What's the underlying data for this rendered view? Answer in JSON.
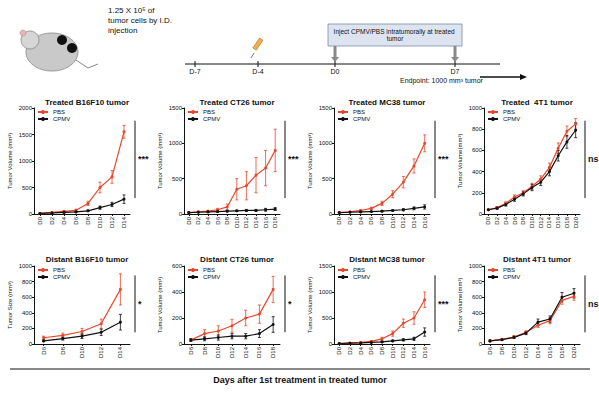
{
  "protocol": {
    "injection_text": [
      "1.25 X 10⁵ of",
      "tumor cells by I.D.",
      "injection"
    ],
    "treatment_text": "Inject CPMV/PBS intratumorally at treated tumor",
    "timepoints": [
      "D-7",
      "D-4",
      "D0",
      "D7"
    ],
    "endpoint_text": "Endpoint: 1000 mm³ tumor"
  },
  "x_axis_title": "Days after 1st treatment in treated tumor",
  "chart_data": [
    {
      "type": "line",
      "title": "Treated B16F10 tumor",
      "y_label": "Tumor Volume (mm³)",
      "significance": "***",
      "categories": [
        "D0",
        "D2",
        "D4",
        "D6",
        "D8",
        "D10",
        "D12",
        "D14"
      ],
      "ylim": [
        0,
        2000
      ],
      "yticks": [
        0,
        500,
        1000,
        1500,
        2000
      ],
      "grid": false,
      "legend": "upper left",
      "series": [
        {
          "name": "PBS",
          "color": "#e8472b",
          "marker": "circle",
          "values": [
            10,
            30,
            50,
            70,
            200,
            500,
            700,
            1550
          ],
          "errors": [
            5,
            10,
            15,
            20,
            40,
            100,
            120,
            120
          ]
        },
        {
          "name": "CPMV",
          "color": "#111111",
          "marker": "circle",
          "values": [
            10,
            20,
            30,
            40,
            60,
            120,
            180,
            280
          ],
          "errors": [
            5,
            5,
            10,
            10,
            15,
            30,
            40,
            80
          ]
        }
      ]
    },
    {
      "type": "line",
      "title": "Treated CT26 tumor",
      "y_label": "Tumor Volume (mm³)",
      "significance": "***",
      "categories": [
        "D0",
        "D2",
        "D4",
        "D6",
        "D8",
        "D10",
        "D12",
        "D14",
        "D16",
        "D18"
      ],
      "ylim": [
        0,
        1500
      ],
      "yticks": [
        0,
        500,
        1000,
        1500
      ],
      "grid": false,
      "legend": "upper left",
      "series": [
        {
          "name": "PBS",
          "color": "#e8472b",
          "marker": "circle",
          "values": [
            20,
            30,
            40,
            60,
            100,
            350,
            400,
            550,
            650,
            900
          ],
          "errors": [
            5,
            10,
            10,
            20,
            40,
            150,
            200,
            250,
            250,
            300
          ]
        },
        {
          "name": "CPMV",
          "color": "#111111",
          "marker": "circle",
          "values": [
            20,
            25,
            30,
            35,
            40,
            45,
            50,
            50,
            60,
            70
          ],
          "errors": [
            5,
            5,
            5,
            10,
            10,
            10,
            15,
            15,
            20,
            20
          ]
        }
      ]
    },
    {
      "type": "line",
      "title": "Treated MC38 tumor",
      "y_label": "Tumor Volume (mm³)",
      "significance": "***",
      "categories": [
        "D0",
        "D2",
        "D4",
        "D6",
        "D8",
        "D10",
        "D12",
        "D14",
        "D16"
      ],
      "ylim": [
        0,
        1500
      ],
      "yticks": [
        0,
        500,
        1000,
        1500
      ],
      "grid": false,
      "legend": "upper left",
      "series": [
        {
          "name": "PBS",
          "color": "#e8472b",
          "marker": "circle",
          "values": [
            20,
            30,
            50,
            80,
            150,
            280,
            450,
            680,
            1000
          ],
          "errors": [
            5,
            5,
            10,
            15,
            30,
            50,
            80,
            100,
            120
          ]
        },
        {
          "name": "CPMV",
          "color": "#111111",
          "marker": "circle",
          "values": [
            20,
            25,
            30,
            35,
            40,
            50,
            60,
            80,
            100
          ],
          "errors": [
            5,
            5,
            5,
            5,
            10,
            10,
            15,
            20,
            30
          ]
        }
      ]
    },
    {
      "type": "line",
      "title": "Treated  4T1 tumor",
      "y_label": "Tumor Volume(mm³)",
      "significance": "ns",
      "categories": [
        "D0",
        "D2",
        "D4",
        "D6",
        "D8",
        "D10",
        "D12",
        "D14",
        "D16",
        "D18",
        "D20"
      ],
      "ylim": [
        0,
        1000
      ],
      "yticks": [
        0,
        200,
        400,
        600,
        800,
        1000
      ],
      "grid": false,
      "legend": "upper left",
      "series": [
        {
          "name": "PBS",
          "color": "#e8472b",
          "marker": "circle",
          "values": [
            40,
            60,
            100,
            160,
            200,
            260,
            330,
            440,
            620,
            780,
            850
          ],
          "errors": [
            5,
            10,
            15,
            20,
            20,
            30,
            30,
            40,
            50,
            50,
            50
          ]
        },
        {
          "name": "CPMV",
          "color": "#111111",
          "marker": "circle",
          "values": [
            40,
            55,
            90,
            140,
            190,
            250,
            300,
            400,
            550,
            680,
            790
          ],
          "errors": [
            5,
            10,
            15,
            20,
            20,
            30,
            30,
            40,
            50,
            60,
            70
          ]
        }
      ]
    },
    {
      "type": "line",
      "title": "Distant B16F10 tumor",
      "y_label": "Tumor Size (mm³)",
      "significance": "*",
      "categories": [
        "D6",
        "D8",
        "D10",
        "D12",
        "D14"
      ],
      "ylim": [
        0,
        1000
      ],
      "yticks": [
        0,
        200,
        400,
        600,
        800,
        1000
      ],
      "grid": false,
      "legend": "upper left",
      "series": [
        {
          "name": "PBS",
          "color": "#e8472b",
          "marker": "circle",
          "values": [
            80,
            110,
            160,
            260,
            700
          ],
          "errors": [
            20,
            30,
            40,
            60,
            200
          ]
        },
        {
          "name": "CPMV",
          "color": "#111111",
          "marker": "circle",
          "values": [
            40,
            70,
            100,
            150,
            280
          ],
          "errors": [
            10,
            20,
            30,
            40,
            100
          ]
        }
      ]
    },
    {
      "type": "line",
      "title": "Distant CT26 tumor",
      "y_label": "Tumor Volume (mm³)",
      "significance": "*",
      "categories": [
        "D6",
        "D8",
        "D10",
        "D12",
        "D14",
        "D16",
        "D18"
      ],
      "ylim": [
        0,
        600
      ],
      "yticks": [
        0,
        200,
        400,
        600
      ],
      "grid": false,
      "legend": "upper left",
      "series": [
        {
          "name": "PBS",
          "color": "#e8472b",
          "marker": "circle",
          "values": [
            30,
            80,
            100,
            140,
            200,
            230,
            420
          ],
          "errors": [
            10,
            30,
            40,
            50,
            60,
            70,
            100
          ]
        },
        {
          "name": "CPMV",
          "color": "#111111",
          "marker": "circle",
          "values": [
            30,
            40,
            50,
            60,
            60,
            80,
            150
          ],
          "errors": [
            10,
            15,
            20,
            20,
            20,
            30,
            60
          ]
        }
      ]
    },
    {
      "type": "line",
      "title": "Distant MC38 tumor",
      "y_label": "Tumor Volume (mm³)",
      "significance": "***",
      "categories": [
        "D0",
        "D2",
        "D4",
        "D6",
        "D8",
        "D10",
        "D12",
        "D14",
        "D16"
      ],
      "ylim": [
        0,
        1500
      ],
      "yticks": [
        0,
        500,
        1000,
        1500
      ],
      "grid": false,
      "legend": "upper left",
      "series": [
        {
          "name": "PBS",
          "color": "#e8472b",
          "marker": "circle",
          "values": [
            10,
            20,
            30,
            50,
            100,
            200,
            400,
            500,
            850
          ],
          "errors": [
            5,
            5,
            10,
            15,
            30,
            50,
            80,
            120,
            150
          ]
        },
        {
          "name": "CPMV",
          "color": "#111111",
          "marker": "circle",
          "values": [
            10,
            15,
            20,
            30,
            40,
            60,
            80,
            100,
            230
          ],
          "errors": [
            5,
            5,
            5,
            10,
            10,
            15,
            20,
            30,
            80
          ]
        }
      ]
    },
    {
      "type": "line",
      "title": "Distant 4T1 tumor",
      "y_label": "Tumor Volume(mm³)",
      "significance": "ns",
      "categories": [
        "D6",
        "D8",
        "D10",
        "D12",
        "D14",
        "D16",
        "D18",
        "D20"
      ],
      "ylim": [
        0,
        1000
      ],
      "yticks": [
        0,
        200,
        400,
        600,
        800,
        1000
      ],
      "grid": false,
      "legend": "upper left",
      "series": [
        {
          "name": "PBS",
          "color": "#e8472b",
          "marker": "circle",
          "values": [
            40,
            60,
            90,
            150,
            240,
            300,
            560,
            610
          ],
          "errors": [
            10,
            10,
            15,
            20,
            30,
            40,
            50,
            50
          ]
        },
        {
          "name": "CPMV",
          "color": "#111111",
          "marker": "circle",
          "values": [
            40,
            55,
            85,
            140,
            280,
            320,
            600,
            650
          ],
          "errors": [
            10,
            10,
            15,
            20,
            40,
            40,
            60,
            60
          ]
        }
      ]
    }
  ]
}
